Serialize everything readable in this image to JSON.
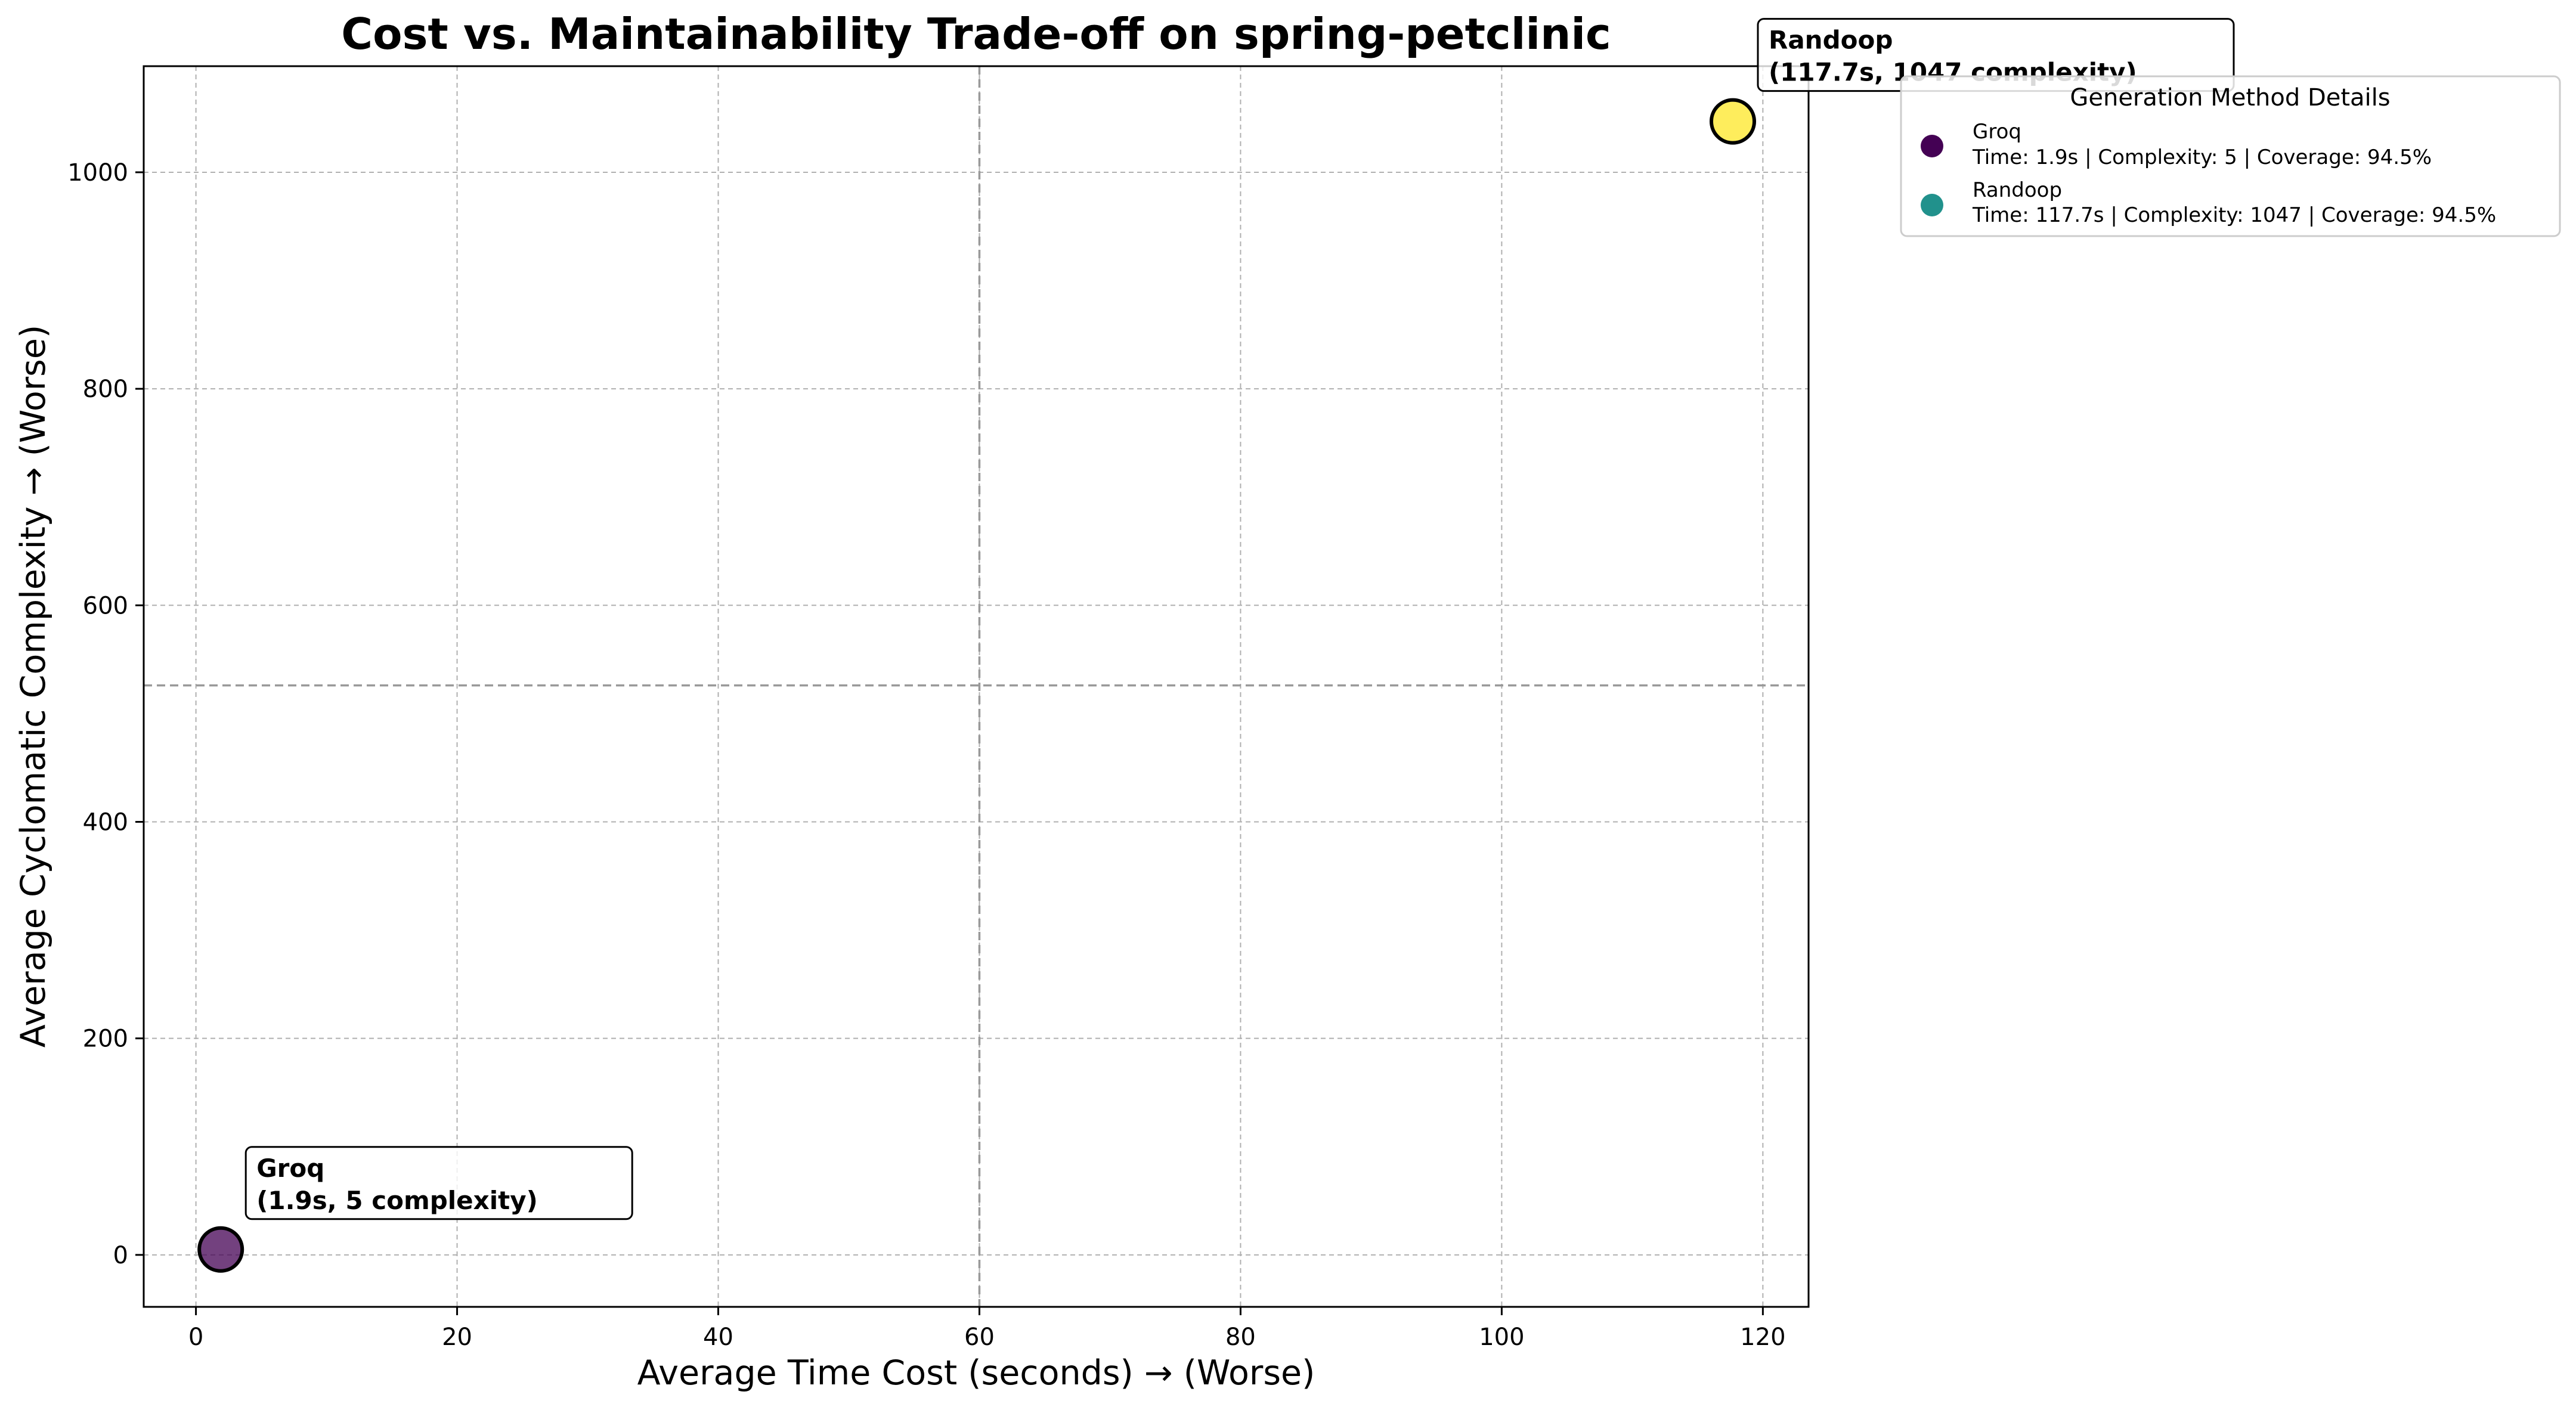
{
  "chart_data": {
    "type": "scatter",
    "title": "Cost vs. Maintainability Trade-off on spring-petclinic",
    "xlabel": "Average Time Cost (seconds) → (Worse)",
    "ylabel": "Average Cyclomatic Complexity → (Worse)",
    "xlim": [
      -4,
      123.5
    ],
    "ylim": [
      -48,
      1098
    ],
    "xticks": [
      0,
      20,
      40,
      60,
      80,
      100,
      120
    ],
    "yticks": [
      0,
      200,
      400,
      600,
      800,
      1000
    ],
    "grid": true,
    "reference_lines": {
      "x": 60,
      "y": 526
    },
    "points": [
      {
        "name": "Groq",
        "x": 1.9,
        "y": 5,
        "color": "#440154",
        "label_line1": "Groq",
        "label_line2": "(1.9s, 5 complexity)"
      },
      {
        "name": "Randoop",
        "x": 117.7,
        "y": 1047,
        "color": "#fde725",
        "label_line1": "Randoop",
        "label_line2": "(117.7s, 1047 complexity)"
      }
    ],
    "legend": {
      "title": "Generation Method Details",
      "placement": "upper-right-outside",
      "entries": [
        {
          "name": "Groq",
          "detail": "Time: 1.9s | Complexity: 5 | Coverage: 94.5%",
          "color": "#440154"
        },
        {
          "name": "Randoop",
          "detail": "Time: 117.7s | Complexity: 1047 | Coverage: 94.5%",
          "color": "#21918c"
        }
      ]
    }
  }
}
